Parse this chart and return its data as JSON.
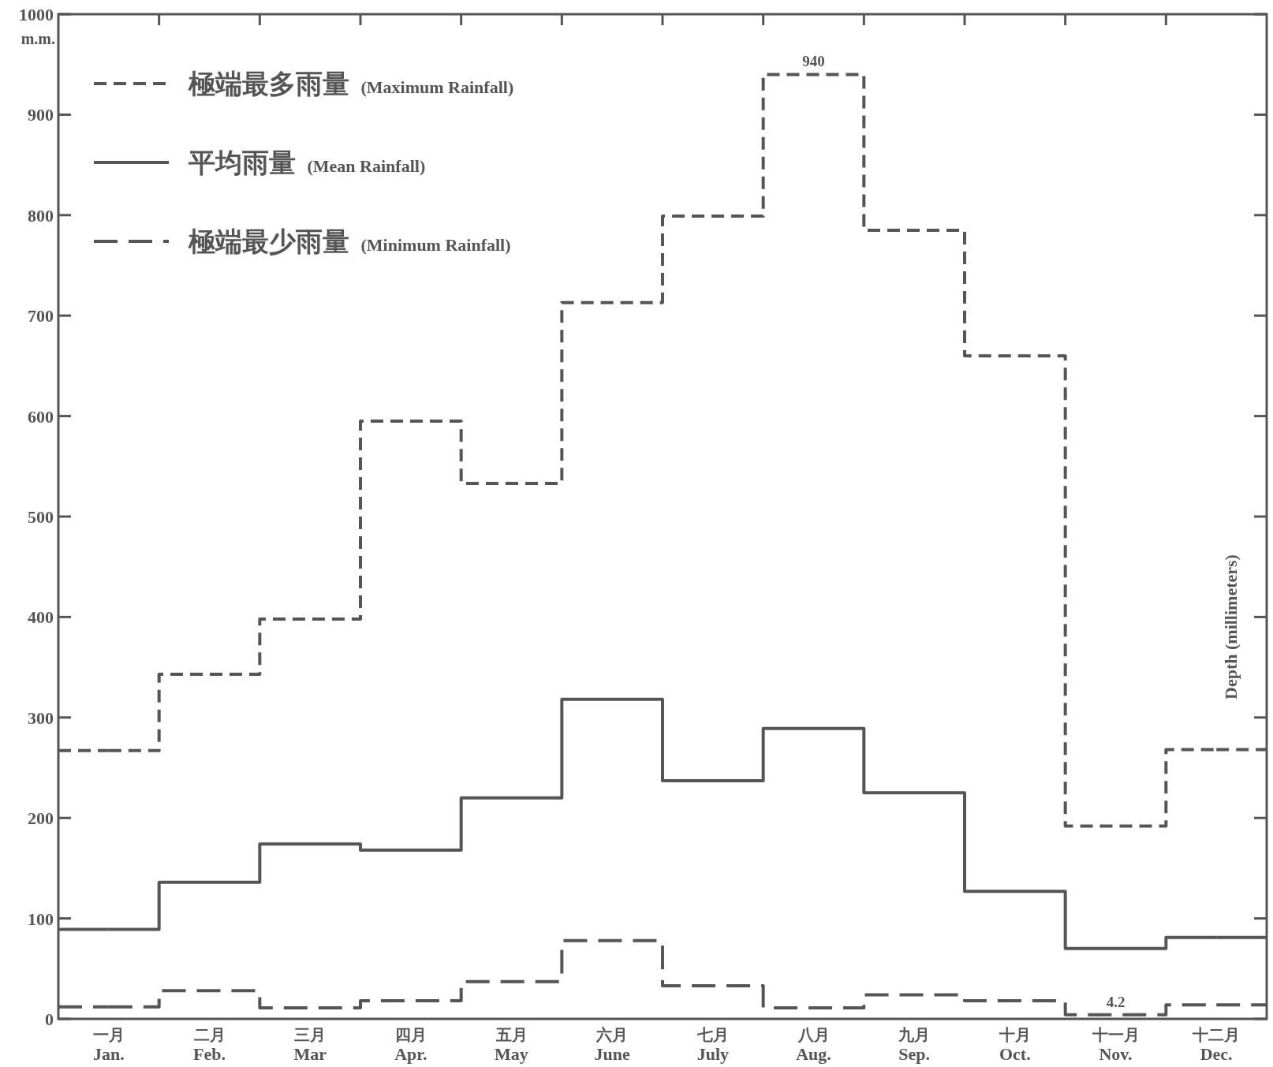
{
  "chart_data": {
    "type": "step",
    "categories": [
      "一月\nJan.",
      "二月\nFeb.",
      "三月\nMar",
      "四月\nApr.",
      "五月\nMay",
      "六月\nJune",
      "七月\nJuly",
      "八月\nAug.",
      "九月\nSep.",
      "十月\nOct.",
      "十一月\nNov.",
      "十二月\nDec."
    ],
    "series": [
      {
        "name": "極端最多雨量 (Maximum Rainfall)",
        "color": "#555555",
        "line_style": "dashed",
        "values": [
          267,
          343,
          398,
          595,
          533,
          713,
          799,
          940,
          785,
          660,
          192,
          268
        ],
        "value_labels": [
          null,
          null,
          null,
          null,
          null,
          null,
          null,
          "940",
          null,
          null,
          null,
          null
        ]
      },
      {
        "name": "平均雨量 (Mean Rainfall)",
        "color": "#555555",
        "line_style": "solid",
        "values": [
          89,
          136,
          174,
          168,
          220,
          318,
          237,
          289,
          225,
          127,
          70,
          81
        ]
      },
      {
        "name": "極端最少雨量 (Minimum Rainfall)",
        "color": "#555555",
        "line_style": "longdash",
        "values": [
          12,
          28,
          11,
          18,
          37,
          78,
          33,
          11,
          24,
          18,
          4.2,
          14
        ],
        "value_labels": [
          null,
          null,
          null,
          null,
          null,
          null,
          null,
          null,
          null,
          null,
          "4.2",
          null
        ]
      }
    ],
    "ylabel": "Depth (millimeters)",
    "annotations": [
      "m.m."
    ],
    "ylim": [
      0,
      1000
    ],
    "yticks": [
      0,
      100,
      200,
      300,
      400,
      500,
      600,
      700,
      800,
      900,
      1000
    ],
    "grid": false,
    "legend": "top left"
  }
}
